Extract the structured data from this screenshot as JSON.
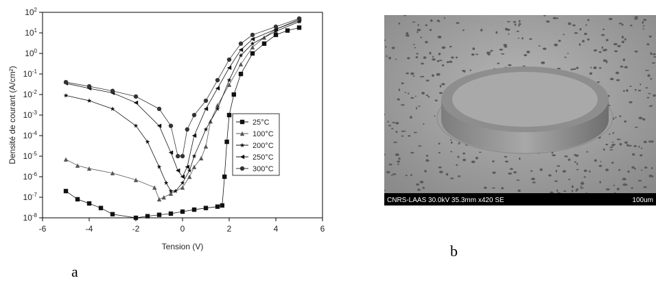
{
  "chart_data": {
    "type": "scatter",
    "yscale": "log",
    "xlabel": "Tension (V)",
    "ylabel": "Densité de courant (A/cm²)",
    "xlim": [
      -6,
      6
    ],
    "xticks": [
      -6,
      -4,
      -2,
      0,
      2,
      4,
      6
    ],
    "ylim": [
      1e-08,
      100
    ],
    "yticks": [
      {
        "value": 1e-08,
        "label": "10",
        "sup": "-8"
      },
      {
        "value": 1e-07,
        "label": "10",
        "sup": "-7"
      },
      {
        "value": 1e-06,
        "label": "10",
        "sup": "-6"
      },
      {
        "value": 1e-05,
        "label": "10",
        "sup": "-5"
      },
      {
        "value": 0.0001,
        "label": "10",
        "sup": "-4"
      },
      {
        "value": 0.001,
        "label": "10",
        "sup": "-3"
      },
      {
        "value": 0.01,
        "label": "10",
        "sup": "-2"
      },
      {
        "value": 0.1,
        "label": "10",
        "sup": "-1"
      },
      {
        "value": 1,
        "label": "10",
        "sup": "0"
      },
      {
        "value": 10,
        "label": "10",
        "sup": "1"
      },
      {
        "value": 100,
        "label": "10",
        "sup": "2"
      }
    ],
    "series": [
      {
        "name": "25°C",
        "color": "#111111",
        "marker": "square",
        "x": [
          -5,
          -4.5,
          -4,
          -3.5,
          -3,
          -2,
          -1.5,
          -1,
          -0.5,
          0,
          0.5,
          1,
          1.5,
          1.7,
          1.8,
          1.9,
          2,
          2.2,
          2.5,
          3,
          3.5,
          4,
          4.5,
          5
        ],
        "values": [
          2e-07,
          8e-08,
          5e-08,
          3e-08,
          1.5e-08,
          1e-08,
          1.2e-08,
          1.4e-08,
          1.6e-08,
          2e-08,
          2.5e-08,
          3e-08,
          3.5e-08,
          4e-08,
          1e-06,
          5e-05,
          0.001,
          0.01,
          0.1,
          1,
          3,
          8,
          13,
          18
        ]
      },
      {
        "name": "100°C",
        "color": "#555555",
        "marker": "triangle",
        "x": [
          -5,
          -4.5,
          -4,
          -3,
          -2,
          -1.2,
          -1,
          -0.8,
          -0.5,
          0,
          0.3,
          0.5,
          0.8,
          1,
          1.2,
          1.5,
          2,
          2.5,
          3,
          3.5,
          4,
          5
        ],
        "values": [
          7e-06,
          3.5e-06,
          2.5e-06,
          1.5e-06,
          7e-07,
          3e-07,
          8e-08,
          1e-07,
          1.5e-07,
          3e-07,
          1e-06,
          3e-06,
          8e-06,
          3e-05,
          0.0005,
          0.003,
          0.03,
          0.3,
          2,
          6,
          15,
          40
        ]
      },
      {
        "name": "200°C",
        "color": "#111111",
        "marker": "star",
        "x": [
          -5,
          -4,
          -3,
          -2,
          -1.5,
          -1,
          -0.7,
          -0.5,
          -0.3,
          0,
          0.3,
          0.5,
          1,
          1.5,
          2,
          2.5,
          3,
          4,
          5
        ],
        "values": [
          0.009,
          0.005,
          0.002,
          0.0003,
          5e-05,
          3e-06,
          5e-07,
          2e-07,
          2e-07,
          5e-07,
          2e-06,
          1e-05,
          0.0002,
          0.002,
          0.05,
          0.8,
          3,
          12,
          35
        ]
      },
      {
        "name": "250°C",
        "color": "#111111",
        "marker": "left",
        "x": [
          -5,
          -4,
          -3,
          -2,
          -1,
          -0.5,
          -0.2,
          0,
          0.2,
          0.5,
          1,
          1.5,
          2,
          2.5,
          3,
          4,
          5
        ],
        "values": [
          0.035,
          0.02,
          0.012,
          0.004,
          0.0003,
          1.5e-05,
          2e-06,
          1e-06,
          3e-06,
          0.0001,
          0.002,
          0.02,
          0.2,
          1.5,
          5,
          15,
          45
        ]
      },
      {
        "name": "300°C",
        "color": "#333333",
        "marker": "circle",
        "x": [
          -5,
          -4,
          -3,
          -2,
          -1,
          -0.5,
          -0.2,
          0,
          0.2,
          0.5,
          1,
          1.5,
          2,
          2.5,
          3,
          4,
          5
        ],
        "values": [
          0.04,
          0.025,
          0.015,
          0.008,
          0.002,
          0.0003,
          1e-05,
          1e-05,
          0.0002,
          0.001,
          0.005,
          0.05,
          0.5,
          3,
          8,
          20,
          50
        ]
      }
    ]
  },
  "panel_labels": [
    "a",
    "b"
  ],
  "image": {
    "caption": "CNRS-LAAS 30.0kV 35.3mm x420 SE",
    "scale": "100um"
  }
}
